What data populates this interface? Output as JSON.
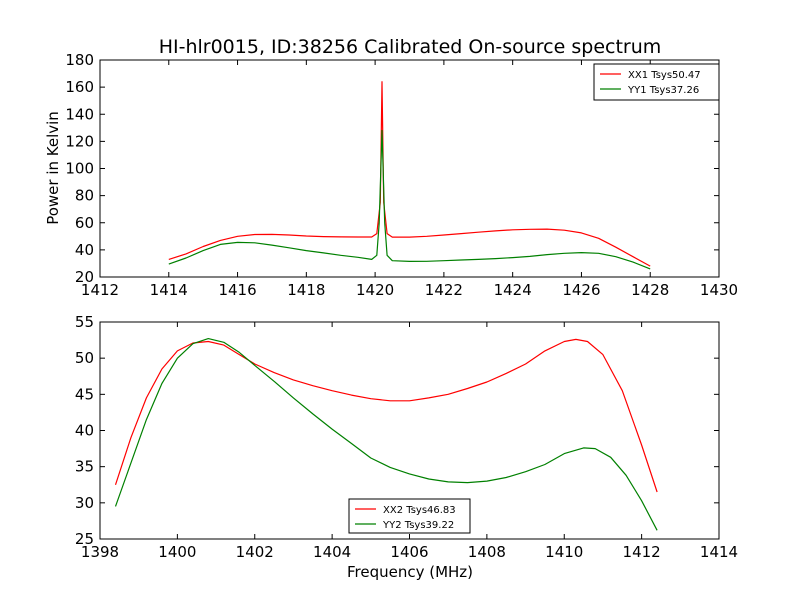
{
  "chart_data": [
    {
      "type": "line",
      "title": "HI-hlr0015, ID:38256 Calibrated On-source spectrum",
      "xlabel": "",
      "ylabel": "Power in Kelvin",
      "xlim": [
        1412,
        1430
      ],
      "ylim": [
        20,
        180
      ],
      "xticks": [
        "1412",
        "1414",
        "1416",
        "1418",
        "1420",
        "1422",
        "1424",
        "1426",
        "1428",
        "1430"
      ],
      "yticks": [
        "20",
        "40",
        "60",
        "80",
        "100",
        "120",
        "140",
        "160",
        "180"
      ],
      "grid": false,
      "legend_position": "top-right",
      "series": [
        {
          "name": "XX1 Tsys50.47",
          "color": "#ff0000",
          "points": [
            [
              1414,
              33
            ],
            [
              1414.5,
              37
            ],
            [
              1415,
              42.5
            ],
            [
              1415.5,
              47
            ],
            [
              1416,
              50
            ],
            [
              1416.5,
              51.3
            ],
            [
              1417,
              51.4
            ],
            [
              1417.5,
              51
            ],
            [
              1418,
              50.2
            ],
            [
              1418.5,
              49.8
            ],
            [
              1419,
              49.6
            ],
            [
              1419.5,
              49.5
            ],
            [
              1419.9,
              49.5
            ],
            [
              1420.05,
              52
            ],
            [
              1420.15,
              75
            ],
            [
              1420.2,
              164
            ],
            [
              1420.25,
              75
            ],
            [
              1420.35,
              52
            ],
            [
              1420.5,
              49.4
            ],
            [
              1421,
              49.4
            ],
            [
              1421.5,
              50
            ],
            [
              1422,
              51
            ],
            [
              1422.5,
              52
            ],
            [
              1423,
              53
            ],
            [
              1423.5,
              54
            ],
            [
              1424,
              54.8
            ],
            [
              1424.5,
              55.2
            ],
            [
              1425,
              55.3
            ],
            [
              1425.5,
              54.5
            ],
            [
              1426,
              52.5
            ],
            [
              1426.5,
              48.5
            ],
            [
              1427,
              42
            ],
            [
              1427.5,
              35
            ],
            [
              1428,
              28
            ]
          ]
        },
        {
          "name": "YY1 Tsys37.26",
          "color": "#008000",
          "points": [
            [
              1414,
              29.5
            ],
            [
              1414.5,
              34
            ],
            [
              1415,
              39.5
            ],
            [
              1415.5,
              44
            ],
            [
              1416,
              45.5
            ],
            [
              1416.5,
              45.2
            ],
            [
              1417,
              43.5
            ],
            [
              1417.5,
              41.5
            ],
            [
              1418,
              39.5
            ],
            [
              1418.5,
              37.8
            ],
            [
              1419,
              36
            ],
            [
              1419.5,
              34.5
            ],
            [
              1419.9,
              33
            ],
            [
              1420.05,
              36
            ],
            [
              1420.12,
              60
            ],
            [
              1420.2,
              128
            ],
            [
              1420.28,
              60
            ],
            [
              1420.35,
              36
            ],
            [
              1420.5,
              32
            ],
            [
              1421,
              31.5
            ],
            [
              1421.5,
              31.6
            ],
            [
              1422,
              32
            ],
            [
              1422.5,
              32.5
            ],
            [
              1423,
              33
            ],
            [
              1423.5,
              33.6
            ],
            [
              1424,
              34.3
            ],
            [
              1424.5,
              35.2
            ],
            [
              1425,
              36.5
            ],
            [
              1425.5,
              37.5
            ],
            [
              1426,
              38
            ],
            [
              1426.5,
              37.5
            ],
            [
              1427,
              35
            ],
            [
              1427.5,
              31
            ],
            [
              1428,
              26
            ]
          ]
        }
      ]
    },
    {
      "type": "line",
      "title": "",
      "xlabel": "Frequency (MHz)",
      "ylabel": "",
      "xlim": [
        1398,
        1414
      ],
      "ylim": [
        25,
        55
      ],
      "xticks": [
        "1398",
        "1400",
        "1402",
        "1404",
        "1406",
        "1408",
        "1410",
        "1412",
        "1414"
      ],
      "yticks": [
        "25",
        "30",
        "35",
        "40",
        "45",
        "50",
        "55"
      ],
      "grid": false,
      "legend_position": "lower-center",
      "series": [
        {
          "name": "XX2 Tsys46.83",
          "color": "#ff0000",
          "points": [
            [
              1398.4,
              32.5
            ],
            [
              1398.8,
              39
            ],
            [
              1399.2,
              44.5
            ],
            [
              1399.6,
              48.5
            ],
            [
              1400,
              51
            ],
            [
              1400.4,
              52.1
            ],
            [
              1400.8,
              52.3
            ],
            [
              1401.2,
              51.8
            ],
            [
              1401.6,
              50.5
            ],
            [
              1402,
              49.2
            ],
            [
              1402.5,
              48
            ],
            [
              1403,
              47
            ],
            [
              1403.5,
              46.2
            ],
            [
              1404,
              45.5
            ],
            [
              1404.5,
              44.9
            ],
            [
              1405,
              44.4
            ],
            [
              1405.5,
              44.1
            ],
            [
              1406,
              44.1
            ],
            [
              1406.5,
              44.5
            ],
            [
              1407,
              45
            ],
            [
              1407.5,
              45.8
            ],
            [
              1408,
              46.7
            ],
            [
              1408.5,
              47.9
            ],
            [
              1409,
              49.2
            ],
            [
              1409.5,
              51
            ],
            [
              1410,
              52.3
            ],
            [
              1410.3,
              52.6
            ],
            [
              1410.6,
              52.3
            ],
            [
              1411,
              50.5
            ],
            [
              1411.5,
              45.5
            ],
            [
              1412,
              38
            ],
            [
              1412.4,
              31.5
            ]
          ]
        },
        {
          "name": "YY2 Tsys39.22",
          "color": "#008000",
          "points": [
            [
              1398.4,
              29.5
            ],
            [
              1398.8,
              35.5
            ],
            [
              1399.2,
              41.5
            ],
            [
              1399.6,
              46.5
            ],
            [
              1400,
              50
            ],
            [
              1400.4,
              52
            ],
            [
              1400.8,
              52.7
            ],
            [
              1401.2,
              52.2
            ],
            [
              1401.6,
              50.8
            ],
            [
              1402,
              49
            ],
            [
              1402.5,
              46.8
            ],
            [
              1403,
              44.5
            ],
            [
              1403.5,
              42.3
            ],
            [
              1404,
              40.2
            ],
            [
              1404.5,
              38.2
            ],
            [
              1405,
              36.2
            ],
            [
              1405.5,
              34.9
            ],
            [
              1406,
              34
            ],
            [
              1406.5,
              33.3
            ],
            [
              1407,
              32.9
            ],
            [
              1407.5,
              32.8
            ],
            [
              1408,
              33
            ],
            [
              1408.5,
              33.5
            ],
            [
              1409,
              34.3
            ],
            [
              1409.5,
              35.3
            ],
            [
              1410,
              36.8
            ],
            [
              1410.5,
              37.6
            ],
            [
              1410.8,
              37.5
            ],
            [
              1411.2,
              36.3
            ],
            [
              1411.6,
              33.8
            ],
            [
              1412,
              30.3
            ],
            [
              1412.4,
              26.2
            ]
          ]
        }
      ]
    }
  ]
}
